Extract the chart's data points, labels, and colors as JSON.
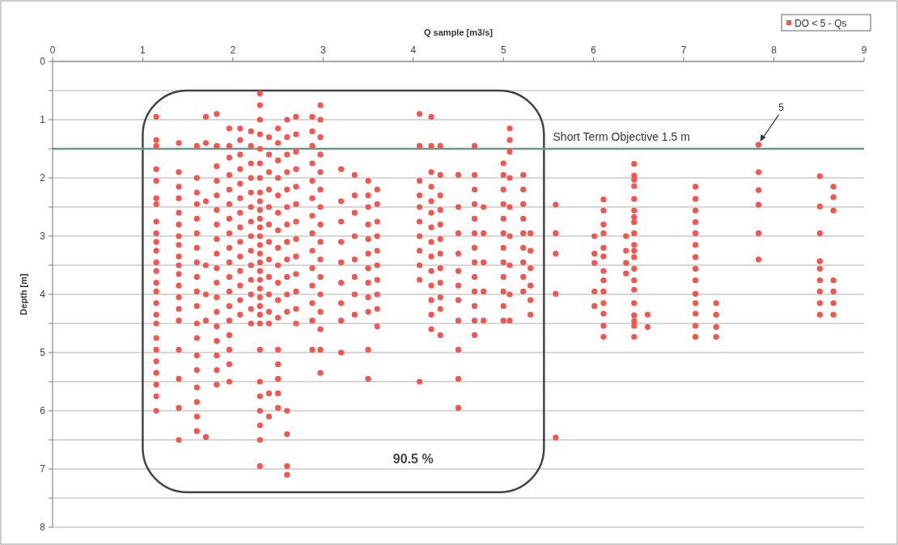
{
  "chart_data": {
    "type": "scatter",
    "xlabel": "Q sample [m3/s]",
    "ylabel": "Depth [m]",
    "xlim": [
      0,
      9
    ],
    "xticks": [
      0,
      1,
      2,
      3,
      4,
      5,
      6,
      7,
      8,
      9
    ],
    "ylim": [
      8,
      0
    ],
    "yticks": [
      0,
      {
        "value": 0.5,
        "label": null
      },
      1,
      {
        "value": 1.5,
        "label": null
      },
      2,
      {
        "value": 2.5,
        "label": null
      },
      3,
      {
        "value": 3.5,
        "label": null
      },
      4,
      {
        "value": 4.5,
        "label": null
      },
      5,
      {
        "value": 5.5,
        "label": null
      },
      6,
      {
        "value": 6.5,
        "label": null
      },
      7,
      {
        "value": 7.5,
        "label": null
      },
      8
    ],
    "grid": "y",
    "legend": "top right",
    "marker": "circle",
    "ref_lines": [
      {
        "axis": "y",
        "value": 1.5,
        "label": "Short Term Objective 1.5 m",
        "color": "#6f968c"
      }
    ],
    "annotations": [
      "5",
      "90.5 %"
    ],
    "series": [
      {
        "name": "DO < 5 - Qs",
        "color": "#f4554f",
        "x": [
          1.15,
          1.15,
          1.15,
          1.15,
          1.15,
          1.15,
          1.15,
          1.15,
          1.15,
          1.15,
          1.15,
          1.15,
          1.15,
          1.15,
          1.15,
          1.15,
          1.15,
          1.15,
          1.15,
          1.15,
          1.15,
          1.15,
          1.15,
          1.15,
          1.15,
          1.4,
          1.4,
          1.4,
          1.4,
          1.4,
          1.4,
          1.4,
          1.4,
          1.4,
          1.4,
          1.4,
          1.4,
          1.4,
          1.4,
          1.4,
          1.4,
          1.4,
          1.4,
          1.4,
          1.6,
          1.6,
          1.6,
          1.6,
          1.6,
          1.6,
          1.6,
          1.6,
          1.6,
          1.6,
          1.6,
          1.6,
          1.6,
          1.6,
          1.6,
          1.6,
          1.6,
          1.6,
          1.6,
          1.7,
          1.7,
          1.7,
          1.7,
          1.7,
          1.7,
          1.7,
          1.82,
          1.82,
          1.82,
          1.82,
          1.82,
          1.82,
          1.82,
          1.82,
          1.82,
          1.82,
          1.82,
          1.82,
          1.82,
          1.82,
          1.82,
          1.82,
          1.82,
          1.82,
          1.96,
          1.96,
          1.96,
          1.96,
          1.96,
          1.96,
          1.96,
          1.96,
          1.96,
          1.96,
          1.96,
          1.96,
          1.96,
          1.96,
          1.96,
          1.96,
          1.96,
          1.96,
          2.08,
          2.08,
          2.08,
          2.08,
          2.08,
          2.08,
          2.08,
          2.08,
          2.08,
          2.08,
          2.08,
          2.08,
          2.08,
          2.08,
          2.2,
          2.2,
          2.2,
          2.2,
          2.2,
          2.2,
          2.2,
          2.2,
          2.2,
          2.2,
          2.2,
          2.2,
          2.2,
          2.2,
          2.3,
          2.3,
          2.3,
          2.3,
          2.3,
          2.3,
          2.3,
          2.3,
          2.3,
          2.3,
          2.3,
          2.3,
          2.3,
          2.3,
          2.3,
          2.3,
          2.3,
          2.3,
          2.3,
          2.3,
          2.3,
          2.3,
          2.3,
          2.3,
          2.3,
          2.3,
          2.3,
          2.3,
          2.3,
          2.3,
          2.4,
          2.4,
          2.4,
          2.4,
          2.4,
          2.4,
          2.4,
          2.4,
          2.4,
          2.4,
          2.4,
          2.4,
          2.4,
          2.4,
          2.5,
          2.5,
          2.5,
          2.5,
          2.5,
          2.5,
          2.5,
          2.5,
          2.5,
          2.5,
          2.5,
          2.5,
          2.5,
          2.5,
          2.5,
          2.5,
          2.5,
          2.6,
          2.6,
          2.6,
          2.6,
          2.6,
          2.6,
          2.6,
          2.6,
          2.6,
          2.6,
          2.6,
          2.6,
          2.6,
          2.6,
          2.6,
          2.6,
          2.7,
          2.7,
          2.7,
          2.7,
          2.7,
          2.7,
          2.7,
          2.7,
          2.7,
          2.7,
          2.7,
          2.7,
          2.7,
          2.88,
          2.88,
          2.88,
          2.88,
          2.88,
          2.88,
          2.88,
          2.88,
          2.88,
          2.88,
          2.88,
          2.88,
          2.88,
          2.88,
          2.97,
          2.97,
          2.97,
          2.97,
          2.97,
          2.97,
          2.97,
          2.97,
          2.97,
          2.97,
          2.97,
          2.97,
          2.97,
          2.97,
          2.97,
          2.97,
          3.2,
          3.2,
          3.2,
          3.2,
          3.2,
          3.2,
          3.2,
          3.2,
          3.2,
          3.35,
          3.35,
          3.35,
          3.35,
          3.35,
          3.35,
          3.35,
          3.35,
          3.5,
          3.5,
          3.5,
          3.5,
          3.5,
          3.5,
          3.5,
          3.5,
          3.5,
          3.5,
          3.5,
          3.5,
          3.6,
          3.6,
          3.6,
          3.6,
          3.6,
          3.6,
          3.6,
          3.6,
          3.6,
          3.6,
          4.07,
          4.07,
          4.07,
          4.07,
          4.07,
          4.07,
          4.07,
          4.07,
          4.07,
          4.07,
          4.07,
          4.2,
          4.2,
          4.2,
          4.2,
          4.2,
          4.2,
          4.2,
          4.2,
          4.2,
          4.2,
          4.2,
          4.2,
          4.2,
          4.2,
          4.3,
          4.3,
          4.3,
          4.3,
          4.3,
          4.3,
          4.3,
          4.3,
          4.3,
          4.3,
          4.3,
          4.3,
          4.5,
          4.5,
          4.5,
          4.5,
          4.5,
          4.5,
          4.5,
          4.5,
          4.5,
          4.5,
          4.5,
          4.68,
          4.68,
          4.68,
          4.68,
          4.68,
          4.68,
          4.68,
          4.68,
          4.68,
          4.68,
          4.68,
          4.68,
          4.68,
          4.78,
          4.78,
          4.78,
          4.78,
          4.78,
          5.0,
          5.0,
          5.0,
          5.0,
          5.0,
          5.0,
          5.0,
          5.0,
          5.0,
          5.0,
          5.0,
          5.0,
          5.07,
          5.07,
          5.07,
          5.07,
          5.07,
          5.07,
          5.07,
          5.07,
          5.07,
          5.22,
          5.22,
          5.22,
          5.22,
          5.22,
          5.22,
          5.22,
          5.22,
          5.22,
          5.3,
          5.3,
          5.3,
          5.3,
          5.3,
          5.3,
          5.58,
          5.58,
          5.58,
          5.58,
          5.58,
          6.01,
          6.01,
          6.01,
          6.01,
          6.01,
          6.11,
          6.11,
          6.11,
          6.11,
          6.11,
          6.11,
          6.11,
          6.11,
          6.11,
          6.11,
          6.11,
          6.11,
          6.11,
          6.36,
          6.36,
          6.36,
          6.36,
          6.45,
          6.45,
          6.45,
          6.45,
          6.45,
          6.45,
          6.45,
          6.45,
          6.45,
          6.45,
          6.45,
          6.45,
          6.45,
          6.45,
          6.45,
          6.45,
          6.45,
          6.45,
          6.45,
          6.45,
          6.6,
          6.6,
          7.13,
          7.13,
          7.13,
          7.13,
          7.13,
          7.13,
          7.13,
          7.13,
          7.13,
          7.13,
          7.13,
          7.13,
          7.13,
          7.13,
          7.36,
          7.36,
          7.36,
          7.36,
          7.83,
          7.83,
          7.83,
          7.83,
          7.83,
          7.83,
          8.51,
          8.51,
          8.51,
          8.51,
          8.51,
          8.51,
          8.51,
          8.51,
          8.51,
          8.66,
          8.66,
          8.66,
          8.66,
          8.66,
          8.66,
          8.66
        ],
        "values": [
          0.95,
          1.35,
          1.45,
          1.85,
          2.05,
          2.35,
          2.45,
          2.75,
          2.95,
          3.1,
          3.25,
          3.45,
          3.6,
          3.8,
          3.95,
          4.15,
          4.35,
          4.5,
          4.75,
          4.95,
          5.15,
          5.35,
          5.55,
          5.75,
          6.0,
          1.4,
          1.9,
          2.15,
          2.35,
          2.6,
          2.8,
          3.0,
          3.15,
          3.35,
          3.5,
          3.65,
          3.85,
          4.05,
          4.25,
          4.45,
          4.95,
          5.45,
          5.95,
          6.5,
          1.45,
          2.0,
          2.25,
          2.45,
          2.7,
          2.95,
          3.2,
          3.45,
          3.7,
          3.95,
          4.2,
          4.5,
          4.75,
          5.05,
          5.3,
          5.6,
          5.85,
          6.1,
          6.35,
          0.95,
          1.4,
          2.4,
          3.5,
          4.0,
          4.45,
          6.45,
          0.9,
          1.45,
          1.8,
          2.05,
          2.3,
          2.55,
          2.8,
          3.05,
          3.3,
          3.55,
          3.8,
          4.05,
          4.3,
          4.55,
          4.8,
          5.05,
          5.3,
          5.55,
          1.15,
          1.45,
          1.65,
          1.95,
          2.2,
          2.45,
          2.7,
          2.95,
          3.2,
          3.45,
          3.7,
          3.95,
          4.2,
          4.45,
          4.7,
          4.95,
          5.2,
          5.5,
          1.15,
          1.35,
          1.6,
          1.85,
          2.1,
          2.35,
          2.6,
          2.85,
          3.1,
          3.35,
          3.6,
          3.85,
          4.1,
          4.35,
          1.2,
          1.45,
          1.75,
          2.0,
          2.25,
          2.5,
          2.75,
          3.0,
          3.25,
          3.5,
          3.75,
          4.0,
          4.25,
          4.5,
          0.55,
          0.75,
          1.0,
          1.25,
          1.5,
          1.75,
          2.0,
          2.25,
          2.4,
          2.55,
          2.7,
          2.85,
          3.0,
          3.15,
          3.3,
          3.45,
          3.6,
          3.75,
          3.9,
          4.05,
          4.2,
          4.35,
          4.5,
          4.95,
          5.5,
          5.75,
          6.0,
          6.25,
          6.5,
          6.95,
          1.3,
          1.6,
          1.9,
          2.2,
          2.5,
          2.8,
          3.1,
          3.4,
          3.7,
          4.0,
          4.3,
          4.5,
          5.7,
          6.1,
          1.15,
          1.4,
          1.7,
          2.0,
          2.3,
          2.6,
          2.9,
          3.2,
          3.5,
          3.8,
          4.1,
          4.4,
          4.95,
          5.2,
          5.45,
          5.7,
          5.95,
          1.0,
          1.3,
          1.6,
          1.9,
          2.2,
          2.5,
          2.8,
          3.1,
          3.4,
          3.7,
          4.0,
          4.3,
          6.0,
          6.4,
          6.95,
          7.1,
          0.95,
          1.25,
          1.55,
          1.85,
          2.15,
          2.45,
          2.75,
          3.05,
          3.35,
          3.65,
          3.95,
          4.25,
          4.5,
          0.95,
          1.2,
          1.45,
          1.75,
          2.05,
          2.35,
          2.65,
          2.95,
          3.25,
          3.55,
          3.85,
          4.15,
          4.45,
          4.95,
          0.75,
          1.0,
          1.3,
          1.6,
          1.9,
          2.2,
          2.5,
          2.8,
          3.1,
          3.4,
          3.7,
          4.0,
          4.3,
          4.6,
          4.95,
          5.35,
          1.85,
          2.4,
          2.75,
          3.1,
          3.45,
          3.8,
          4.15,
          4.45,
          5.0,
          1.95,
          2.3,
          2.6,
          3.0,
          3.4,
          3.7,
          4.0,
          4.35,
          2.05,
          2.3,
          2.5,
          2.8,
          3.05,
          3.3,
          3.55,
          3.8,
          4.05,
          4.3,
          4.95,
          5.45,
          2.2,
          2.45,
          2.75,
          3.0,
          3.25,
          3.5,
          3.75,
          4.0,
          4.25,
          4.55,
          0.9,
          1.45,
          2.05,
          2.3,
          2.5,
          2.75,
          3.0,
          3.25,
          3.5,
          3.75,
          5.5,
          0.95,
          1.45,
          1.9,
          2.15,
          2.4,
          2.6,
          2.85,
          3.1,
          3.35,
          3.6,
          3.85,
          4.1,
          4.35,
          4.6,
          1.45,
          1.95,
          2.3,
          2.55,
          2.8,
          3.05,
          3.3,
          3.55,
          3.8,
          4.05,
          4.25,
          4.7,
          1.95,
          2.5,
          2.95,
          3.3,
          3.6,
          3.85,
          4.1,
          4.45,
          4.95,
          5.45,
          5.95,
          1.45,
          1.95,
          2.2,
          2.45,
          2.7,
          2.95,
          3.2,
          3.45,
          3.7,
          3.95,
          4.2,
          4.45,
          4.7,
          2.5,
          2.95,
          3.45,
          3.95,
          4.45,
          1.75,
          1.95,
          2.2,
          2.45,
          2.7,
          2.95,
          3.2,
          3.45,
          3.7,
          3.95,
          4.2,
          4.45,
          1.15,
          1.35,
          1.55,
          2.0,
          2.5,
          3.0,
          3.5,
          4.0,
          4.45,
          1.95,
          2.2,
          2.45,
          2.7,
          2.95,
          3.2,
          3.45,
          3.7,
          3.95,
          2.95,
          3.25,
          3.55,
          3.85,
          4.1,
          4.35,
          2.46,
          2.95,
          3.3,
          3.99,
          6.46,
          3.0,
          3.3,
          3.46,
          3.95,
          4.2,
          2.37,
          2.56,
          2.8,
          2.95,
          3.2,
          3.35,
          3.6,
          3.76,
          3.95,
          4.15,
          4.33,
          4.54,
          4.73,
          3.0,
          3.25,
          3.46,
          3.64,
          1.76,
          1.96,
          2.03,
          2.14,
          2.36,
          2.56,
          2.67,
          2.76,
          2.95,
          3.15,
          3.25,
          3.36,
          3.56,
          3.76,
          3.92,
          4.15,
          4.36,
          4.46,
          4.54,
          4.73,
          4.35,
          4.56,
          2.15,
          2.36,
          2.56,
          2.76,
          2.95,
          3.15,
          3.36,
          3.56,
          3.76,
          3.99,
          4.15,
          4.33,
          4.54,
          4.73,
          4.15,
          4.35,
          4.56,
          4.73,
          1.43,
          1.9,
          2.21,
          2.46,
          2.95,
          3.4,
          1.97,
          2.49,
          2.95,
          3.43,
          3.56,
          3.76,
          3.95,
          4.15,
          4.35,
          2.15,
          2.33,
          2.56,
          3.76,
          3.95,
          4.15,
          4.35
        ]
      }
    ]
  }
}
